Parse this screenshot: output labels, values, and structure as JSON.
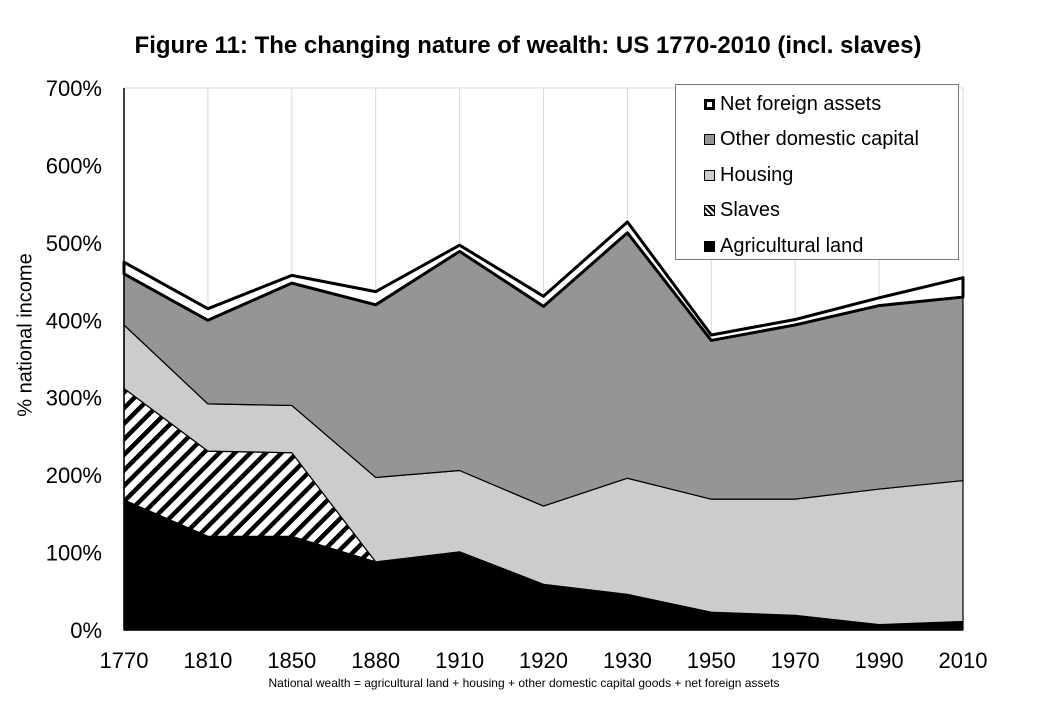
{
  "chart_data": {
    "type": "area",
    "stacked": true,
    "title": "Figure 11: The changing nature of wealth: US 1770-2010 (incl. slaves)",
    "ylabel": "% national income",
    "caption": "National wealth = agricultural land + housing + other domestic capital goods + net foreign assets",
    "categories": [
      "1770",
      "1810",
      "1850",
      "1880",
      "1910",
      "1920",
      "1930",
      "1950",
      "1970",
      "1990",
      "2010"
    ],
    "ylim": [
      0,
      700
    ],
    "yticks": [
      "0%",
      "100%",
      "200%",
      "300%",
      "400%",
      "500%",
      "600%",
      "700%"
    ],
    "grid": "vertical",
    "legend_position": "top-right",
    "series": [
      {
        "name": "Agricultural land",
        "key": "agri",
        "values": [
          168,
          121,
          121,
          88,
          101,
          59,
          46,
          23,
          19,
          7,
          11
        ],
        "color": "#000000"
      },
      {
        "name": "Slaves",
        "key": "slaves",
        "values": [
          144,
          110,
          108,
          0,
          0,
          0,
          0,
          0,
          0,
          0,
          0
        ],
        "color": "hatch"
      },
      {
        "name": "Housing",
        "key": "housing",
        "values": [
          82,
          61,
          61,
          109,
          105,
          101,
          150,
          146,
          150,
          175,
          182
        ],
        "color": "#cccccc"
      },
      {
        "name": "Other domestic capital",
        "key": "other",
        "values": [
          66,
          108,
          158,
          223,
          283,
          258,
          317,
          205,
          225,
          237,
          237
        ],
        "color": "#959595"
      },
      {
        "name": "Net foreign assets",
        "key": "nfa",
        "values": [
          15,
          15,
          10,
          17,
          8,
          13,
          14,
          7,
          7,
          10,
          25
        ],
        "color": "#ffffff"
      }
    ]
  },
  "legend_order": [
    "nfa",
    "other",
    "housing",
    "slaves",
    "agri"
  ]
}
